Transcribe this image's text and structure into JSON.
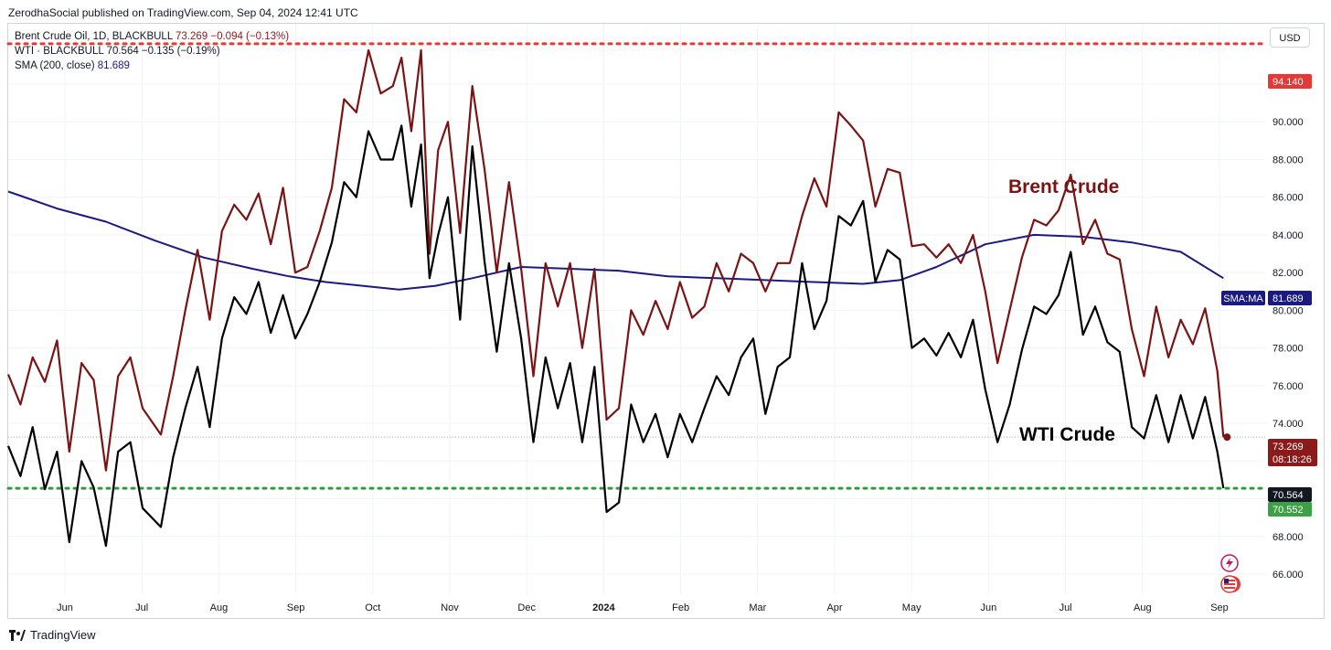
{
  "header": {
    "published": "ZerodhaSocial published on TradingView.com, Sep 04, 2024 12:41 UTC"
  },
  "legend": {
    "brent_name": "Brent Crude Oil, 1D, BLACKBULL",
    "brent_vals": "73.269 −0.094 (−0.13%)",
    "wti_name": "WTI · BLACKBULL",
    "wti_vals": "70.564 −0.135 (−0.19%)",
    "sma_name": "SMA (200, close)",
    "sma_val": "81.689"
  },
  "currency_button": "USD",
  "footer": {
    "brand": "TradingView"
  },
  "colors": {
    "brent": "#7a1414",
    "wti": "#000000",
    "sma": "#1a1a80",
    "high_line": "#e53935",
    "low_line": "#2e9e3a"
  },
  "chart_data": {
    "type": "line",
    "ylim": [
      64.8,
      95.4
    ],
    "y_ticks": [
      66,
      68,
      70,
      72,
      74,
      76,
      78,
      80,
      82,
      84,
      86,
      88,
      90,
      92
    ],
    "x_ticks": [
      "Jun",
      "Jul",
      "Aug",
      "Sep",
      "Oct",
      "Nov",
      "Dec",
      "2024",
      "Feb",
      "Mar",
      "Apr",
      "May",
      "Jun",
      "Jul",
      "Aug",
      "Sep"
    ],
    "annotations": [
      {
        "text": "Brent Crude",
        "series": "brent",
        "near": [
          0.68,
          88.0
        ]
      },
      {
        "text": "WTI Crude",
        "series": "wti",
        "near": [
          0.7,
          73.7
        ]
      }
    ],
    "price_labels": {
      "high": "94.140",
      "sma": "SMA:MA",
      "sma_value": "81.689",
      "brent": "73.269",
      "countdown": "08:18:26",
      "wti": "70.564",
      "low": "70.552"
    },
    "levels": {
      "high": 94.14,
      "low": 70.552,
      "brent_last": 73.269
    },
    "series": [
      {
        "name": "Brent Crude",
        "key": "brent",
        "t": [
          0.0,
          0.01,
          0.02,
          0.03,
          0.04,
          0.05,
          0.06,
          0.07,
          0.08,
          0.09,
          0.1,
          0.11,
          0.125,
          0.135,
          0.145,
          0.155,
          0.165,
          0.175,
          0.185,
          0.195,
          0.205,
          0.215,
          0.225,
          0.235,
          0.245,
          0.255,
          0.265,
          0.275,
          0.285,
          0.295,
          0.305,
          0.315,
          0.322,
          0.33,
          0.338,
          0.345,
          0.352,
          0.36,
          0.37,
          0.38,
          0.39,
          0.4,
          0.41,
          0.42,
          0.43,
          0.44,
          0.45,
          0.46,
          0.47,
          0.48,
          0.49,
          0.5,
          0.51,
          0.52,
          0.53,
          0.54,
          0.55,
          0.56,
          0.57,
          0.58,
          0.59,
          0.6,
          0.61,
          0.62,
          0.63,
          0.64,
          0.65,
          0.66,
          0.67,
          0.68,
          0.69,
          0.7,
          0.71,
          0.72,
          0.73,
          0.74,
          0.75,
          0.76,
          0.77,
          0.78,
          0.79,
          0.8,
          0.81,
          0.82,
          0.83,
          0.84,
          0.85,
          0.86,
          0.87,
          0.88,
          0.89,
          0.9,
          0.91,
          0.92,
          0.93,
          0.94,
          0.95,
          0.96,
          0.97,
          0.98,
          0.99,
          0.995
        ],
        "values": [
          76.6,
          75.0,
          77.5,
          76.2,
          78.4,
          72.5,
          77.2,
          76.3,
          71.5,
          76.5,
          77.5,
          74.8,
          73.4,
          76.5,
          80.0,
          83.2,
          79.5,
          84.2,
          85.6,
          84.8,
          86.2,
          83.5,
          86.5,
          82.0,
          82.3,
          84.2,
          86.5,
          91.2,
          90.5,
          93.8,
          91.5,
          91.9,
          93.4,
          89.5,
          93.8,
          83.0,
          88.5,
          90.0,
          84.1,
          91.9,
          87.5,
          82.0,
          86.8,
          82.2,
          76.5,
          82.5,
          80.2,
          82.5,
          78.0,
          82.2,
          74.2,
          74.8,
          80.0,
          78.7,
          80.5,
          79.0,
          81.5,
          79.6,
          80.2,
          82.5,
          81.0,
          83.0,
          82.5,
          81.0,
          82.5,
          82.5,
          85.0,
          87.0,
          85.5,
          90.5,
          89.8,
          89.0,
          85.5,
          87.5,
          87.3,
          83.4,
          83.5,
          82.8,
          83.5,
          82.5,
          84.0,
          81.0,
          77.2,
          80.0,
          82.8,
          84.8,
          84.5,
          85.3,
          87.2,
          83.5,
          84.8,
          83.0,
          82.7,
          79.0,
          76.5,
          80.2,
          77.5,
          79.5,
          78.2,
          80.1,
          76.8,
          73.27
        ]
      },
      {
        "name": "WTI Crude",
        "key": "wti",
        "t": [
          0.0,
          0.01,
          0.02,
          0.03,
          0.04,
          0.05,
          0.06,
          0.07,
          0.08,
          0.09,
          0.1,
          0.11,
          0.125,
          0.135,
          0.145,
          0.155,
          0.165,
          0.175,
          0.185,
          0.195,
          0.205,
          0.215,
          0.225,
          0.235,
          0.245,
          0.255,
          0.265,
          0.275,
          0.285,
          0.295,
          0.305,
          0.315,
          0.322,
          0.33,
          0.338,
          0.345,
          0.352,
          0.36,
          0.37,
          0.38,
          0.39,
          0.4,
          0.41,
          0.42,
          0.43,
          0.44,
          0.45,
          0.46,
          0.47,
          0.48,
          0.49,
          0.5,
          0.51,
          0.52,
          0.53,
          0.54,
          0.55,
          0.56,
          0.57,
          0.58,
          0.59,
          0.6,
          0.61,
          0.62,
          0.63,
          0.64,
          0.65,
          0.66,
          0.67,
          0.68,
          0.69,
          0.7,
          0.71,
          0.72,
          0.73,
          0.74,
          0.75,
          0.76,
          0.77,
          0.78,
          0.79,
          0.8,
          0.81,
          0.82,
          0.83,
          0.84,
          0.85,
          0.86,
          0.87,
          0.88,
          0.89,
          0.9,
          0.91,
          0.92,
          0.93,
          0.94,
          0.95,
          0.96,
          0.97,
          0.98,
          0.99,
          0.995
        ],
        "values": [
          72.8,
          71.2,
          73.8,
          70.5,
          72.5,
          67.7,
          72.0,
          70.6,
          67.5,
          72.5,
          73.0,
          69.5,
          68.5,
          72.2,
          74.8,
          77.0,
          73.8,
          78.5,
          80.7,
          79.8,
          81.5,
          78.8,
          80.8,
          78.5,
          79.8,
          81.5,
          83.6,
          86.8,
          86.0,
          89.5,
          88.0,
          88.0,
          89.8,
          85.5,
          88.8,
          81.7,
          84.0,
          86.0,
          79.5,
          88.7,
          82.6,
          77.8,
          82.5,
          78.5,
          73.0,
          77.5,
          74.8,
          77.2,
          73.0,
          77.0,
          69.3,
          69.8,
          75.0,
          73.0,
          74.5,
          72.2,
          74.5,
          73.0,
          74.8,
          76.5,
          75.5,
          77.5,
          78.5,
          74.5,
          77.0,
          77.5,
          82.5,
          79.0,
          80.5,
          85.0,
          84.5,
          85.8,
          81.5,
          83.2,
          82.7,
          78.0,
          78.5,
          77.6,
          78.8,
          77.5,
          79.5,
          75.8,
          73.0,
          75.0,
          77.9,
          80.2,
          79.8,
          80.8,
          83.1,
          78.7,
          80.2,
          78.3,
          77.8,
          73.8,
          73.2,
          75.5,
          73.0,
          75.5,
          73.2,
          75.4,
          72.5,
          70.56
        ]
      },
      {
        "name": "SMA (200, close)",
        "key": "sma",
        "t": [
          0.0,
          0.04,
          0.08,
          0.12,
          0.16,
          0.2,
          0.23,
          0.26,
          0.29,
          0.32,
          0.35,
          0.38,
          0.42,
          0.46,
          0.5,
          0.54,
          0.58,
          0.62,
          0.66,
          0.7,
          0.73,
          0.76,
          0.8,
          0.84,
          0.88,
          0.92,
          0.96,
          0.995
        ],
        "values": [
          86.3,
          85.4,
          84.7,
          83.7,
          82.8,
          82.2,
          81.8,
          81.5,
          81.3,
          81.1,
          81.3,
          81.7,
          82.3,
          82.2,
          82.1,
          81.8,
          81.7,
          81.6,
          81.5,
          81.4,
          81.6,
          82.3,
          83.5,
          84.0,
          83.9,
          83.6,
          83.1,
          81.7
        ]
      }
    ]
  }
}
